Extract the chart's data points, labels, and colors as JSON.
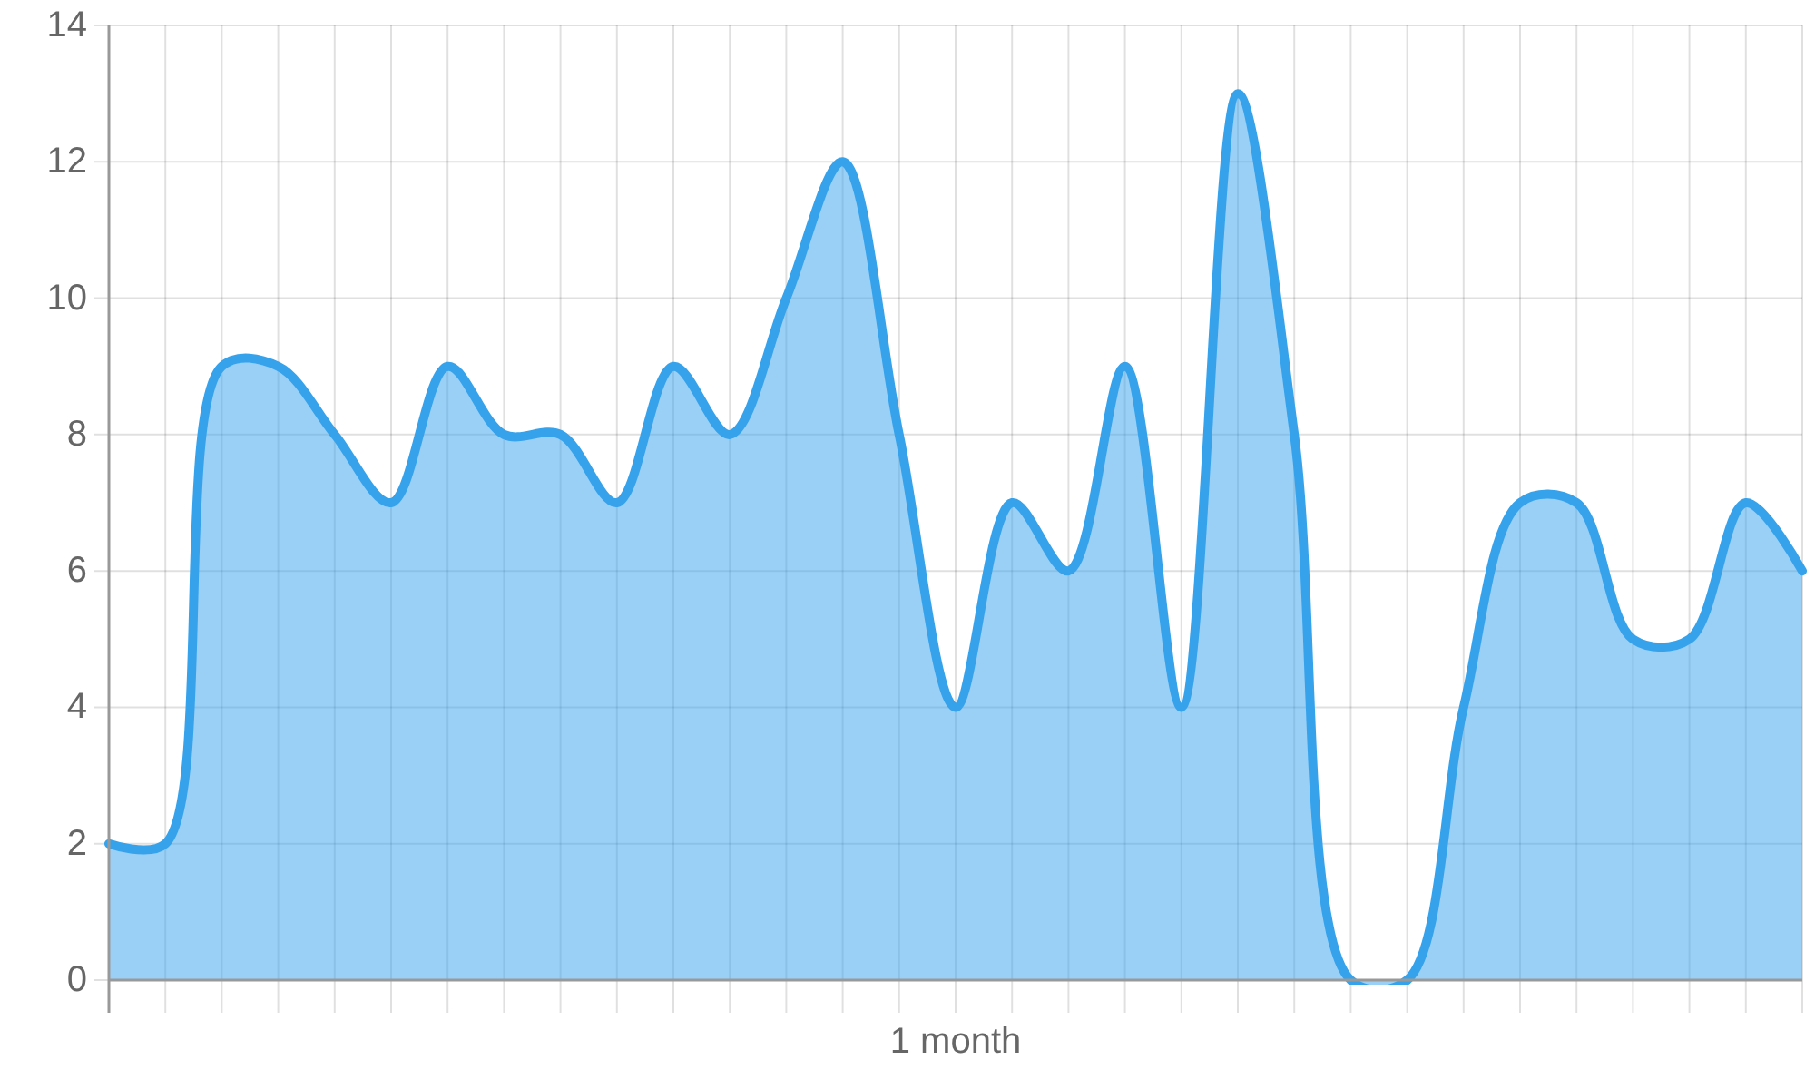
{
  "chart_data": {
    "type": "area",
    "categories": [
      null,
      null,
      null,
      null,
      null,
      null,
      null,
      null,
      null,
      null,
      null,
      null,
      null,
      null,
      null,
      "1 month",
      null,
      null,
      null,
      null,
      null,
      null,
      null,
      null,
      null,
      null,
      null,
      null,
      null,
      null,
      null
    ],
    "series": [
      {
        "color": "#36a2eb",
        "values": [
          2,
          2,
          9,
          9,
          8,
          7,
          9,
          8,
          8,
          7,
          9,
          8,
          10,
          12,
          8,
          4,
          7,
          6,
          9,
          4,
          13,
          8,
          0,
          0,
          4,
          7,
          7,
          5,
          5,
          7,
          6
        ]
      }
    ],
    "ylim": [
      0,
      14
    ],
    "yticks": [
      0,
      2,
      4,
      6,
      8,
      10,
      12,
      14
    ],
    "grid": true
  }
}
